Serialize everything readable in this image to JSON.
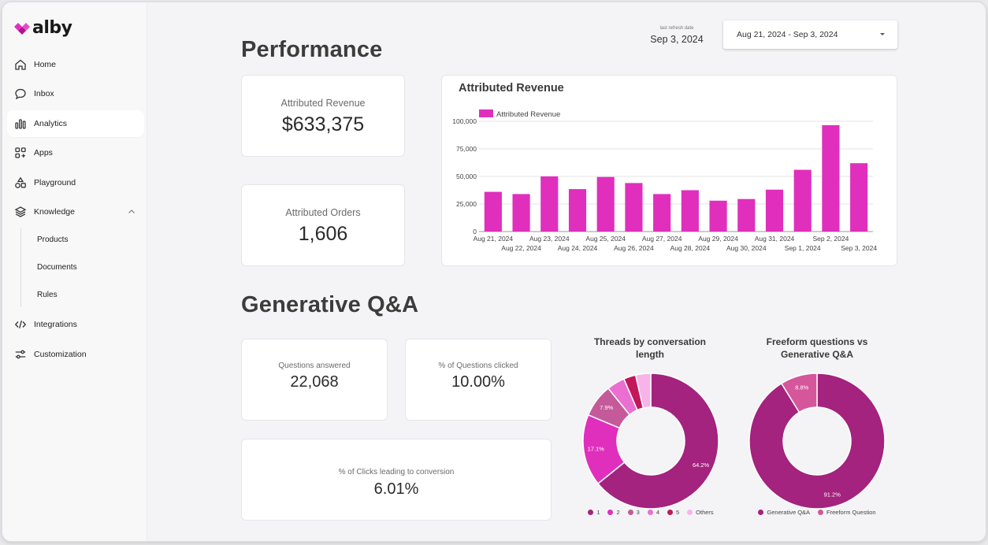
{
  "app": {
    "logo_text": "alby"
  },
  "sidebar": {
    "items": [
      {
        "label": "Home",
        "icon": "home-icon"
      },
      {
        "label": "Inbox",
        "icon": "chat-bubble-icon"
      },
      {
        "label": "Analytics",
        "icon": "bar-chart-icon"
      },
      {
        "label": "Apps",
        "icon": "apps-grid-icon"
      },
      {
        "label": "Playground",
        "icon": "shapes-icon"
      },
      {
        "label": "Knowledge",
        "icon": "layers-icon"
      },
      {
        "label": "Integrations",
        "icon": "code-icon"
      },
      {
        "label": "Customization",
        "icon": "sliders-icon"
      }
    ],
    "knowledge_children": [
      "Products",
      "Documents",
      "Rules"
    ]
  },
  "header": {
    "refresh_label": "last refresh date",
    "refresh_date": "Sep 3, 2024",
    "date_range": "Aug 21, 2024 - Sep 3, 2024"
  },
  "performance": {
    "title": "Performance",
    "revenue_label": "Attributed Revenue",
    "revenue_value": "$633,375",
    "orders_label": "Attributed Orders",
    "orders_value": "1,606"
  },
  "genqa": {
    "title": "Generative Q&A",
    "answered_label": "Questions answered",
    "answered_value": "22,068",
    "clicked_label": "% of Questions clicked",
    "clicked_value": "10.00%",
    "conversion_label": "% of Clicks leading to conversion",
    "conversion_value": "6.01%"
  },
  "colors": {
    "bar": "#e02fbd",
    "donut_1": "#a3237e",
    "donut_2": "#e02fbd",
    "donut_3": "#c45a9a",
    "donut_4": "#ea6fd1",
    "donut_5": "#c2185b",
    "donut_others": "#f8b3ea",
    "freeform": "#d5569a"
  },
  "chart_data": [
    {
      "type": "bar",
      "title": "Attributed Revenue",
      "series": [
        {
          "name": "Attributed Revenue",
          "values": [
            36000,
            34000,
            50000,
            38500,
            49500,
            44000,
            34000,
            37500,
            28000,
            29500,
            38000,
            56000,
            96500,
            62000
          ]
        }
      ],
      "categories": [
        "Aug 21, 2024",
        "Aug 22, 2024",
        "Aug 23, 2024",
        "Aug 24, 2024",
        "Aug 25, 2024",
        "Aug 26, 2024",
        "Aug 27, 2024",
        "Aug 28, 2024",
        "Aug 29, 2024",
        "Aug 30, 2024",
        "Aug 31, 2024",
        "Sep 1, 2024",
        "Sep 2, 2024",
        "Sep 3, 2024"
      ],
      "ylim": [
        0,
        100000
      ],
      "yticks": [
        "0",
        "25,000",
        "50,000",
        "75,000",
        "100,000"
      ],
      "ytick_values": [
        0,
        25000,
        50000,
        75000,
        100000
      ],
      "legend": "top-left",
      "grid": true
    },
    {
      "type": "pie",
      "title": "Threads by conversation length",
      "labels": [
        "1",
        "2",
        "3",
        "4",
        "5",
        "Others"
      ],
      "values": [
        64.2,
        17.1,
        7.9,
        4.3,
        2.9,
        3.6
      ],
      "value_labels": [
        "64.2%",
        "17.1%",
        "7.9%",
        "",
        "",
        ""
      ]
    },
    {
      "type": "pie",
      "title": "Freeform questions vs Generative Q&A",
      "labels": [
        "Generative Q&A",
        "Freeform Question"
      ],
      "values": [
        91.2,
        8.8
      ],
      "value_labels": [
        "91.2%",
        "8.8%"
      ]
    }
  ]
}
